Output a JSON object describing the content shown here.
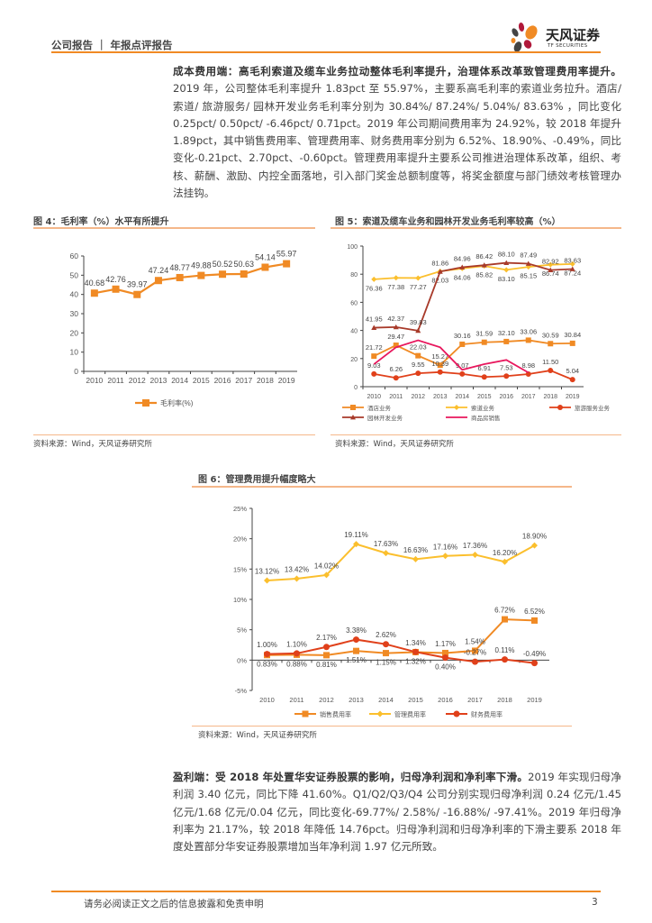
{
  "header": {
    "title": "公司报告 ｜ 年报点评报告",
    "logo_cn": "天风证券",
    "logo_en": "TF SECURITIES"
  },
  "para1": {
    "lead": "成本费用端：高毛利索道及缆车业务拉动整体毛利率提升，治理体系改革致管理费用率提升。",
    "body": "2019 年，公司整体毛利率提升 1.83pct 至 55.97%，主要系高毛利率的索道业务拉升。酒店/ 索道/ 旅游服务/ 园林开发业务毛利率分别为 30.84%/ 87.24%/ 5.04%/ 83.63% ，同比变化 0.25pct/ 0.50pct/ -6.46pct/ 0.71pct。2019 年公司期间费用率为 24.92%，较 2018 年提升 1.89pct，其中销售费用率、管理费用率、财务费用率分别为 6.52%、18.90%、-0.49%，同比变化-0.21pct、2.70pct、-0.60pct。管理费用率提升主要系公司推进治理体系改革，组织、考核、薪酬、激励、内控全面落地，引入部门奖金总额制度等，将奖金额度与部门绩效考核管理办法挂钩。"
  },
  "fig4": {
    "title": "图 4：毛利率（%）水平有所提升",
    "source": "资料来源：Wind，天风证券研究所"
  },
  "fig5": {
    "title": "图 5：索道及缆车业务和园林开发业务毛利率较高（%）",
    "source": "资料来源：Wind，天风证券研究所"
  },
  "fig6": {
    "title": "图 6：管理费用提升幅度略大",
    "source": "资料来源：Wind，天风证券研究所"
  },
  "para2": {
    "lead": "盈利端：受 2018 年处置华安证券股票的影响，归母净利润和净利率下滑。",
    "body": "2019 年实现归母净利润 3.40 亿元，同比下降 41.60%。Q1/Q2/Q3/Q4 公司分别实现归母净利润 0.24 亿元/1.45 亿元/1.68 亿元/0.04 亿元，同比变化-69.77%/ 2.58%/ -16.88%/ -97.41%。2019 年归母净利率为 21.17%，较 2018 年降低 14.76pct。归母净利润和归母净利率的下滑主要系 2018 年度处置部分华安证券股票增加当年净利润 1.97 亿元所致。"
  },
  "footer": {
    "disclaimer": "请务必阅读正文之后的信息披露和免责申明",
    "page": "3"
  },
  "chart_data": [
    {
      "type": "line",
      "categories": [
        "2010",
        "2011",
        "2012",
        "2013",
        "2014",
        "2015",
        "2016",
        "2017",
        "2018",
        "2019"
      ],
      "ylim": [
        0,
        60
      ],
      "yticks": [
        0,
        10,
        20,
        30,
        40,
        50,
        60
      ],
      "ytick_suffix": "",
      "legend": "bottom",
      "series": [
        {
          "name": "毛利率(%)",
          "color": "#F08A24",
          "marker": "square",
          "labels": true,
          "values": [
            40.68,
            42.76,
            39.97,
            47.24,
            48.77,
            49.88,
            50.52,
            50.63,
            54.14,
            55.97
          ]
        }
      ]
    },
    {
      "type": "line",
      "categories": [
        "2010",
        "2011",
        "2012",
        "2013",
        "2014",
        "2015",
        "2016",
        "2017",
        "2018",
        "2019"
      ],
      "ylim": [
        0,
        100
      ],
      "yticks": [
        0,
        20,
        40,
        60,
        80,
        100
      ],
      "ytick_suffix": "",
      "legend": "bottom",
      "series": [
        {
          "name": "酒店业务",
          "color": "#F08A24",
          "marker": "square",
          "labels": true,
          "values": [
            21.72,
            29.47,
            22.03,
            15.27,
            30.16,
            31.59,
            32.1,
            33.06,
            30.59,
            30.84
          ]
        },
        {
          "name": "索道业务",
          "color": "#FBBF2D",
          "marker": "diamond",
          "labels": true,
          "values": [
            76.36,
            77.38,
            77.27,
            82.03,
            84.06,
            85.82,
            83.1,
            85.15,
            86.74,
            87.24
          ]
        },
        {
          "name": "旅游服务业务",
          "color": "#E0401A",
          "marker": "circle",
          "labels": true,
          "values": [
            9.03,
            6.26,
            9.55,
            10.39,
            9.07,
            6.91,
            7.53,
            8.98,
            11.5,
            5.04
          ]
        },
        {
          "name": "园林开发业务",
          "color": "#A83A2A",
          "marker": "triangle",
          "labels": true,
          "values": [
            41.95,
            42.37,
            39.83,
            81.86,
            84.96,
            86.42,
            88.1,
            87.49,
            82.92,
            83.63
          ]
        },
        {
          "name": "商品房销售",
          "color": "#E8175D",
          "marker": "none",
          "labels": false,
          "values": [
            16,
            28,
            33,
            28,
            12,
            16,
            19,
            10,
            null,
            null
          ]
        }
      ]
    },
    {
      "type": "line",
      "categories": [
        "2010",
        "2011",
        "2012",
        "2013",
        "2014",
        "2015",
        "2016",
        "2017",
        "2018",
        "2019"
      ],
      "ylim": [
        -5,
        25
      ],
      "yticks": [
        -5,
        0,
        5,
        10,
        15,
        20,
        25
      ],
      "ytick_suffix": "%",
      "legend": "bottom",
      "series": [
        {
          "name": "销售费用率",
          "color": "#F08A24",
          "marker": "square",
          "labels": true,
          "values": [
            0.83,
            0.88,
            0.81,
            1.51,
            1.15,
            1.32,
            1.17,
            1.54,
            6.72,
            6.52
          ]
        },
        {
          "name": "管理费用率",
          "color": "#FBBF2D",
          "marker": "diamond",
          "labels": true,
          "values": [
            13.12,
            13.42,
            14.02,
            19.11,
            17.63,
            16.63,
            17.16,
            17.36,
            16.2,
            18.9
          ]
        },
        {
          "name": "财务费用率",
          "color": "#E0401A",
          "marker": "circle",
          "labels": true,
          "values": [
            1.0,
            1.1,
            2.17,
            3.38,
            2.62,
            1.34,
            0.4,
            -0.27,
            0.11,
            -0.49
          ]
        }
      ]
    }
  ]
}
